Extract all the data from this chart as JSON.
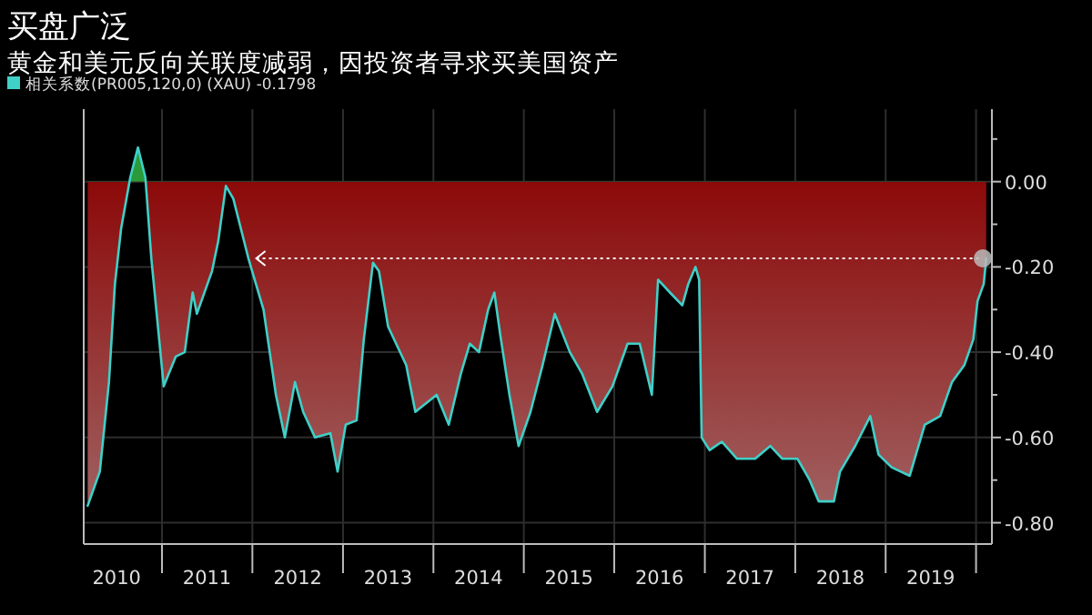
{
  "chart_data": {
    "type": "area",
    "title": "买盘广泛",
    "subtitle": "黄金和美元反向关联度减弱，因投资者寻求买美国资产",
    "x": [
      "2010-03-07",
      "2010-04-25",
      "2010-06-01",
      "2010-06-25",
      "2010-07-20",
      "2010-08-26",
      "2010-09-26",
      "2010-10-26",
      "2010-11-19",
      "2010-12-19",
      "2011-01-08",
      "2011-02-26",
      "2011-04-03",
      "2011-05-05",
      "2011-05-22",
      "2011-07-22",
      "2011-08-16",
      "2011-09-16",
      "2011-10-16",
      "2011-12-16",
      "2012-02-15",
      "2012-04-05",
      "2012-05-11",
      "2012-06-21",
      "2012-07-24",
      "2012-09-10",
      "2012-11-11",
      "2012-12-10",
      "2013-01-12",
      "2013-02-25",
      "2013-03-26",
      "2013-05-02",
      "2013-05-26",
      "2013-07-02",
      "2013-09-13",
      "2013-10-20",
      "2014-01-14",
      "2014-03-04",
      "2014-04-22",
      "2014-05-28",
      "2014-07-04",
      "2014-08-10",
      "2014-09-04",
      "2014-09-28",
      "2014-11-04",
      "2014-12-11",
      "2015-01-28",
      "2015-03-18",
      "2015-05-06",
      "2015-07-06",
      "2015-08-24",
      "2015-10-24",
      "2015-12-25",
      "2016-02-24",
      "2016-04-13",
      "2016-06-01",
      "2016-06-26",
      "2016-08-13",
      "2016-10-02",
      "2016-10-26",
      "2016-11-24",
      "2016-12-09",
      "2016-12-19",
      "2017-01-20",
      "2017-03-11",
      "2017-05-11",
      "2017-07-23",
      "2017-09-22",
      "2017-11-10",
      "2018-01-10",
      "2018-02-28",
      "2018-04-06",
      "2018-06-06",
      "2018-07-01",
      "2018-08-31",
      "2018-10-31",
      "2018-12-03",
      "2019-01-25",
      "2019-04-08",
      "2019-06-08",
      "2019-08-09",
      "2019-09-26",
      "2019-11-15",
      "2019-12-21",
      "2020-01-07",
      "2020-02-01",
      "2020-02-11"
    ],
    "series": [
      {
        "name": "相关系数(PR005,120,0) (XAU) -0.1798",
        "color": "#3fd0c8",
        "values": [
          -0.76,
          -0.68,
          -0.47,
          -0.24,
          -0.11,
          0.01,
          0.08,
          0.01,
          -0.18,
          -0.36,
          -0.48,
          -0.41,
          -0.4,
          -0.26,
          -0.31,
          -0.21,
          -0.14,
          -0.01,
          -0.04,
          -0.18,
          -0.3,
          -0.5,
          -0.6,
          -0.47,
          -0.54,
          -0.6,
          -0.59,
          -0.68,
          -0.57,
          -0.56,
          -0.37,
          -0.19,
          -0.21,
          -0.34,
          -0.43,
          -0.54,
          -0.5,
          -0.57,
          -0.45,
          -0.38,
          -0.4,
          -0.3,
          -0.26,
          -0.36,
          -0.5,
          -0.62,
          -0.54,
          -0.43,
          -0.31,
          -0.4,
          -0.45,
          -0.54,
          -0.48,
          -0.38,
          -0.38,
          -0.5,
          -0.23,
          -0.26,
          -0.29,
          -0.24,
          -0.2,
          -0.23,
          -0.6,
          -0.63,
          -0.61,
          -0.65,
          -0.65,
          -0.62,
          -0.65,
          -0.65,
          -0.7,
          -0.75,
          -0.75,
          -0.68,
          -0.62,
          -0.55,
          -0.64,
          -0.67,
          -0.69,
          -0.57,
          -0.55,
          -0.47,
          -0.43,
          -0.37,
          -0.28,
          -0.24,
          -0.18
        ]
      }
    ],
    "xlim": [
      "2010-02-19",
      "2020-03-05"
    ],
    "xticks": [
      {
        "value": "2010-07-02",
        "label": "2010"
      },
      {
        "value": "2011-01-01",
        "label": null
      },
      {
        "value": "2011-07-02",
        "label": "2011"
      },
      {
        "value": "2012-01-01",
        "label": null
      },
      {
        "value": "2012-07-02",
        "label": "2012"
      },
      {
        "value": "2013-01-01",
        "label": null
      },
      {
        "value": "2013-07-02",
        "label": "2013"
      },
      {
        "value": "2014-01-01",
        "label": null
      },
      {
        "value": "2014-07-02",
        "label": "2014"
      },
      {
        "value": "2015-01-01",
        "label": null
      },
      {
        "value": "2015-07-02",
        "label": "2015"
      },
      {
        "value": "2016-01-01",
        "label": null
      },
      {
        "value": "2016-07-02",
        "label": "2016"
      },
      {
        "value": "2017-01-01",
        "label": null
      },
      {
        "value": "2017-07-02",
        "label": "2017"
      },
      {
        "value": "2018-01-01",
        "label": null
      },
      {
        "value": "2018-07-02",
        "label": "2018"
      },
      {
        "value": "2019-01-01",
        "label": null
      },
      {
        "value": "2019-07-02",
        "label": "2019"
      },
      {
        "value": "2020-01-01",
        "label": null
      }
    ],
    "ylim": [
      -0.85,
      0.17
    ],
    "yticks": [
      {
        "value": 0.1,
        "label": null
      },
      {
        "value": 0,
        "label": "0.00"
      },
      {
        "value": -0.1,
        "label": null
      },
      {
        "value": -0.2,
        "label": "-0.20"
      },
      {
        "value": -0.3,
        "label": null
      },
      {
        "value": -0.4,
        "label": "-0.40"
      },
      {
        "value": -0.5,
        "label": null
      },
      {
        "value": -0.6,
        "label": "-0.60"
      },
      {
        "value": -0.7,
        "label": null
      },
      {
        "value": -0.8,
        "label": "-0.80"
      }
    ],
    "ref_lines": [
      {
        "axis": "y",
        "value": -0.18,
        "label": null,
        "color": "#ffffff",
        "line_style": "dotted"
      }
    ],
    "grid": true,
    "legend": "top left"
  }
}
